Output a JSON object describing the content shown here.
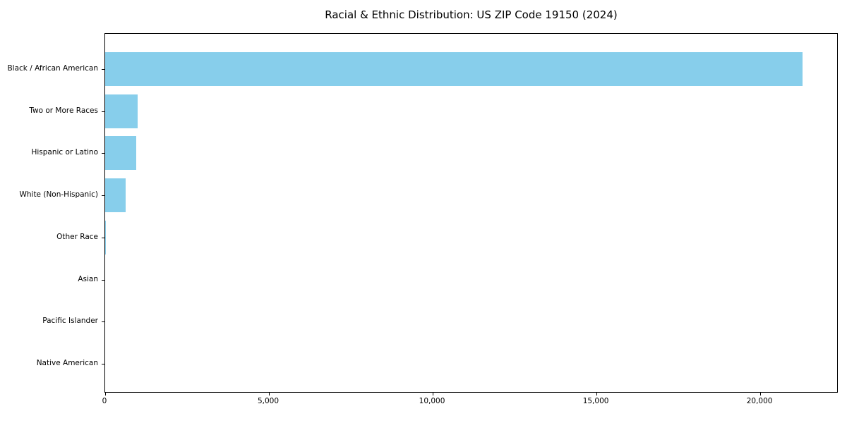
{
  "title": "Racial & Ethnic Distribution: US ZIP Code 19150 (2024)",
  "chart_data": {
    "type": "bar",
    "orientation": "horizontal",
    "title": "Racial & Ethnic Distribution: US ZIP Code 19150 (2024)",
    "categories": [
      "Black / African American",
      "Two or More Races",
      "Hispanic or Latino",
      "White (Non-Hispanic)",
      "Other Race",
      "Asian",
      "Pacific Islander",
      "Native American"
    ],
    "values": [
      21300,
      1000,
      940,
      630,
      30,
      0,
      0,
      0
    ],
    "xlabel": "",
    "ylabel": "",
    "xlim": [
      0,
      22390
    ],
    "x_ticks": [
      0,
      5000,
      10000,
      15000,
      20000
    ],
    "x_tick_labels": [
      "0",
      "5,000",
      "10,000",
      "15,000",
      "20,000"
    ],
    "bar_color": "#87CEEB",
    "axis_color": "#000000",
    "background_color": "#ffffff",
    "grid": false,
    "legend": null
  }
}
